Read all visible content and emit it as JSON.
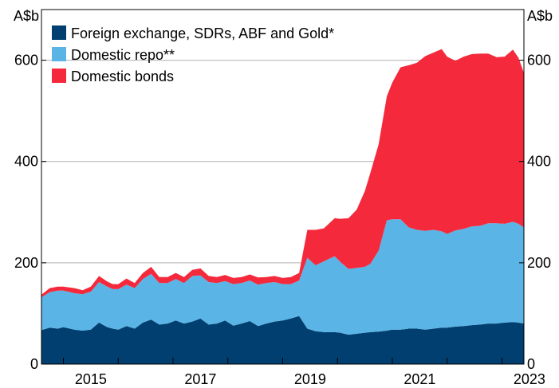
{
  "chart_data": {
    "type": "area",
    "stacked": true,
    "left_unit": "A$b",
    "right_unit": "A$b",
    "ylim": [
      0,
      700
    ],
    "y_ticks": [
      0,
      200,
      400,
      600
    ],
    "x_ticks": [
      "2015",
      "2017",
      "2019",
      "2021",
      "2023"
    ],
    "grid": true,
    "legend_placement": "top-left",
    "x": [
      2014.6,
      2014.75,
      2014.9,
      2015.0,
      2015.2,
      2015.35,
      2015.5,
      2015.65,
      2015.8,
      2015.9,
      2016.0,
      2016.15,
      2016.3,
      2016.45,
      2016.6,
      2016.75,
      2016.9,
      2017.05,
      2017.2,
      2017.35,
      2017.5,
      2017.65,
      2017.8,
      2017.95,
      2018.1,
      2018.25,
      2018.4,
      2018.55,
      2018.7,
      2018.85,
      2019.0,
      2019.15,
      2019.3,
      2019.45,
      2019.6,
      2019.75,
      2019.85,
      2019.95,
      2020.05,
      2020.2,
      2020.35,
      2020.5,
      2020.6,
      2020.75,
      2020.9,
      2021.0,
      2021.15,
      2021.3,
      2021.45,
      2021.6,
      2021.75,
      2021.9,
      2022.0,
      2022.15,
      2022.3,
      2022.45,
      2022.6,
      2022.75,
      2022.9,
      2023.05,
      2023.2,
      2023.3,
      2023.4
    ],
    "series": [
      {
        "name": "Foreign exchange, SDRs, ABF and Gold*",
        "color": "#003f6f",
        "values": [
          67,
          72,
          70,
          73,
          68,
          66,
          68,
          82,
          73,
          70,
          68,
          75,
          70,
          82,
          88,
          78,
          80,
          86,
          80,
          84,
          90,
          78,
          80,
          86,
          76,
          80,
          85,
          75,
          80,
          84,
          86,
          90,
          95,
          70,
          65,
          63,
          63,
          63,
          62,
          58,
          60,
          62,
          63,
          64,
          66,
          68,
          68,
          70,
          70,
          68,
          70,
          72,
          72,
          74,
          75,
          77,
          78,
          80,
          80,
          82,
          83,
          82,
          80
        ]
      },
      {
        "name": "Domestic repo**",
        "color": "#5ab4e5",
        "values": [
          65,
          70,
          75,
          72,
          72,
          72,
          75,
          80,
          80,
          78,
          80,
          82,
          80,
          86,
          90,
          82,
          80,
          82,
          80,
          90,
          85,
          84,
          80,
          78,
          82,
          80,
          80,
          82,
          80,
          78,
          72,
          68,
          70,
          140,
          130,
          140,
          145,
          150,
          140,
          130,
          130,
          130,
          135,
          160,
          218,
          218,
          218,
          200,
          195,
          195,
          195,
          190,
          185,
          190,
          192,
          195,
          195,
          198,
          198,
          195,
          198,
          195,
          190
        ]
      },
      {
        "name": "Domestic bonds",
        "color": "#f42a3c",
        "values": [
          5,
          8,
          8,
          8,
          10,
          8,
          10,
          12,
          10,
          10,
          10,
          12,
          10,
          12,
          14,
          12,
          12,
          12,
          12,
          12,
          14,
          12,
          12,
          12,
          12,
          12,
          12,
          14,
          12,
          12,
          12,
          14,
          15,
          55,
          70,
          65,
          70,
          75,
          85,
          100,
          115,
          150,
          180,
          210,
          245,
          270,
          300,
          320,
          330,
          345,
          350,
          360,
          350,
          335,
          340,
          340,
          340,
          335,
          328,
          330,
          340,
          328,
          305
        ]
      }
    ]
  }
}
